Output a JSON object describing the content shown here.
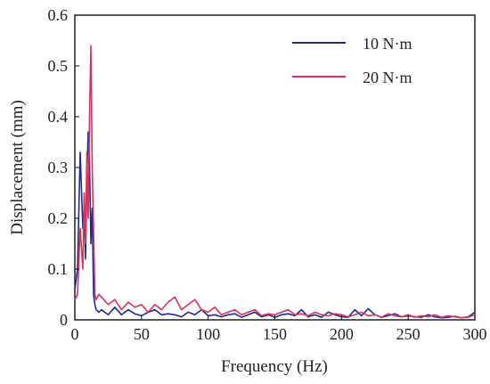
{
  "chart_data": {
    "type": "line",
    "title": "",
    "xlabel": "Frequency (Hz)",
    "ylabel": "Displacement (mm)",
    "xlim": [
      0,
      300
    ],
    "ylim": [
      0,
      0.6
    ],
    "x_ticks": [
      "0",
      "50",
      "100",
      "150",
      "200",
      "250",
      "300"
    ],
    "y_ticks": [
      "0",
      "0.1",
      "0.2",
      "0.3",
      "0.4",
      "0.5",
      "0.6"
    ],
    "x_tick_values": [
      0,
      50,
      100,
      150,
      200,
      250,
      300
    ],
    "y_tick_values": [
      0,
      0.1,
      0.2,
      0.3,
      0.4,
      0.5,
      0.6
    ],
    "grid": false,
    "legend_position": "top-right",
    "series": [
      {
        "name": "10 N·m",
        "color": "#1f2a8f",
        "x": [
          0,
          2,
          4,
          6,
          7,
          8,
          9,
          10,
          11,
          12,
          13,
          14,
          15,
          16,
          18,
          20,
          25,
          30,
          35,
          40,
          45,
          50,
          55,
          60,
          65,
          70,
          75,
          80,
          85,
          90,
          95,
          100,
          105,
          110,
          115,
          120,
          125,
          130,
          135,
          140,
          145,
          150,
          155,
          160,
          165,
          170,
          175,
          180,
          185,
          190,
          195,
          200,
          205,
          210,
          215,
          220,
          225,
          230,
          235,
          240,
          245,
          250,
          255,
          260,
          265,
          270,
          275,
          280,
          285,
          290,
          295,
          300
        ],
        "values": [
          0.06,
          0.1,
          0.33,
          0.18,
          0.22,
          0.12,
          0.28,
          0.37,
          0.31,
          0.15,
          0.22,
          0.05,
          0.03,
          0.02,
          0.015,
          0.02,
          0.01,
          0.025,
          0.01,
          0.02,
          0.012,
          0.008,
          0.015,
          0.02,
          0.01,
          0.012,
          0.01,
          0.006,
          0.015,
          0.01,
          0.02,
          0.008,
          0.01,
          0.006,
          0.01,
          0.012,
          0.005,
          0.01,
          0.015,
          0.006,
          0.01,
          0.005,
          0.01,
          0.012,
          0.008,
          0.02,
          0.006,
          0.01,
          0.005,
          0.015,
          0.01,
          0.006,
          0.005,
          0.02,
          0.008,
          0.022,
          0.01,
          0.005,
          0.008,
          0.012,
          0.006,
          0.008,
          0.006,
          0.005,
          0.01,
          0.006,
          0.004,
          0.005,
          0.007,
          0.004,
          0.006,
          0.015
        ]
      },
      {
        "name": "20 N·m",
        "color": "#d4335a",
        "x": [
          0,
          2,
          4,
          6,
          7,
          8,
          9,
          10,
          11,
          12,
          13,
          14,
          15,
          16,
          18,
          20,
          25,
          30,
          35,
          40,
          45,
          50,
          55,
          60,
          65,
          70,
          75,
          80,
          85,
          90,
          95,
          100,
          105,
          110,
          115,
          120,
          125,
          130,
          135,
          140,
          145,
          150,
          155,
          160,
          165,
          170,
          175,
          180,
          185,
          190,
          195,
          200,
          205,
          210,
          215,
          220,
          225,
          230,
          235,
          240,
          245,
          250,
          255,
          260,
          265,
          270,
          275,
          280,
          285,
          290,
          295,
          300
        ],
        "values": [
          0.04,
          0.05,
          0.18,
          0.1,
          0.25,
          0.15,
          0.33,
          0.2,
          0.4,
          0.54,
          0.3,
          0.18,
          0.05,
          0.04,
          0.05,
          0.045,
          0.03,
          0.04,
          0.02,
          0.035,
          0.025,
          0.03,
          0.015,
          0.03,
          0.02,
          0.035,
          0.045,
          0.02,
          0.03,
          0.04,
          0.02,
          0.015,
          0.025,
          0.01,
          0.015,
          0.02,
          0.01,
          0.015,
          0.02,
          0.008,
          0.012,
          0.01,
          0.015,
          0.02,
          0.01,
          0.012,
          0.008,
          0.015,
          0.01,
          0.008,
          0.012,
          0.01,
          0.006,
          0.01,
          0.015,
          0.008,
          0.01,
          0.005,
          0.012,
          0.008,
          0.006,
          0.01,
          0.005,
          0.008,
          0.006,
          0.01,
          0.005,
          0.008,
          0.006,
          0.004,
          0.005,
          0.01
        ]
      }
    ]
  }
}
